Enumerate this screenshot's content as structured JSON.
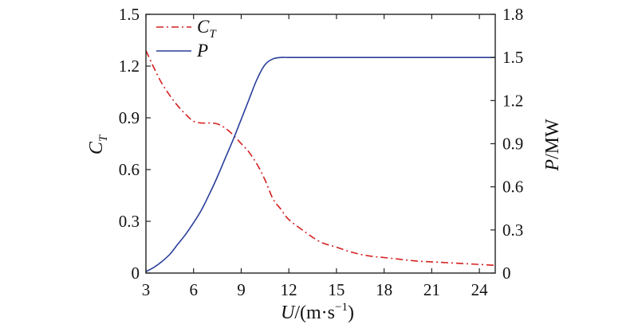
{
  "chart_data": {
    "type": "line",
    "xlabel": "U/(m·s⁻¹)",
    "ylabel_left": "C_T",
    "ylabel_right": "P/MW",
    "xlim": [
      3,
      25
    ],
    "ylim_left": [
      0,
      1.5
    ],
    "ylim_right": [
      0,
      1.8
    ],
    "x_ticks": [
      "3",
      "6",
      "9",
      "12",
      "15",
      "18",
      "21",
      "24"
    ],
    "x_tick_values": [
      3,
      6,
      9,
      12,
      15,
      18,
      21,
      24
    ],
    "y_left_ticks": [
      "0",
      "0.3",
      "0.6",
      "0.9",
      "1.2",
      "1.5"
    ],
    "y_left_tick_values": [
      0,
      0.3,
      0.6,
      0.9,
      1.2,
      1.5
    ],
    "y_right_ticks": [
      "0",
      "0.3",
      "0.6",
      "0.9",
      "1.2",
      "1.5",
      "1.8"
    ],
    "y_right_tick_values": [
      0,
      0.3,
      0.6,
      0.9,
      1.2,
      1.5,
      1.8
    ],
    "grid": false,
    "legend_position": "top-left",
    "series": [
      {
        "name": "C_T",
        "axis": "left",
        "color": "#d42020",
        "style": "dash-dot",
        "x": [
          3,
          3.5,
          4,
          4.5,
          5,
          5.5,
          6,
          6.5,
          7,
          7.5,
          8,
          8.5,
          9,
          9.5,
          10,
          10.5,
          11,
          11.5,
          12,
          13,
          14,
          15,
          16,
          17,
          18,
          19,
          20,
          21,
          22,
          23,
          24,
          25
        ],
        "values": [
          1.29,
          1.19,
          1.1,
          1.03,
          0.97,
          0.92,
          0.88,
          0.87,
          0.87,
          0.865,
          0.84,
          0.8,
          0.75,
          0.7,
          0.63,
          0.54,
          0.43,
          0.37,
          0.31,
          0.24,
          0.18,
          0.15,
          0.12,
          0.1,
          0.09,
          0.08,
          0.07,
          0.065,
          0.06,
          0.055,
          0.05,
          0.045
        ]
      },
      {
        "name": "P",
        "axis": "right",
        "color": "#2a3f9a",
        "style": "solid",
        "x": [
          3,
          3.5,
          4,
          4.5,
          5,
          5.5,
          6,
          6.5,
          7,
          7.5,
          8,
          8.5,
          9,
          9.5,
          10,
          10.5,
          11,
          11.5,
          12,
          13,
          14,
          15,
          16,
          17,
          18,
          19,
          20,
          21,
          22,
          23,
          24,
          25
        ],
        "values": [
          0.01,
          0.04,
          0.08,
          0.13,
          0.2,
          0.27,
          0.35,
          0.44,
          0.55,
          0.67,
          0.8,
          0.93,
          1.07,
          1.21,
          1.35,
          1.45,
          1.49,
          1.5,
          1.5,
          1.5,
          1.5,
          1.5,
          1.5,
          1.5,
          1.5,
          1.5,
          1.5,
          1.5,
          1.5,
          1.5,
          1.5,
          1.5
        ]
      }
    ]
  }
}
